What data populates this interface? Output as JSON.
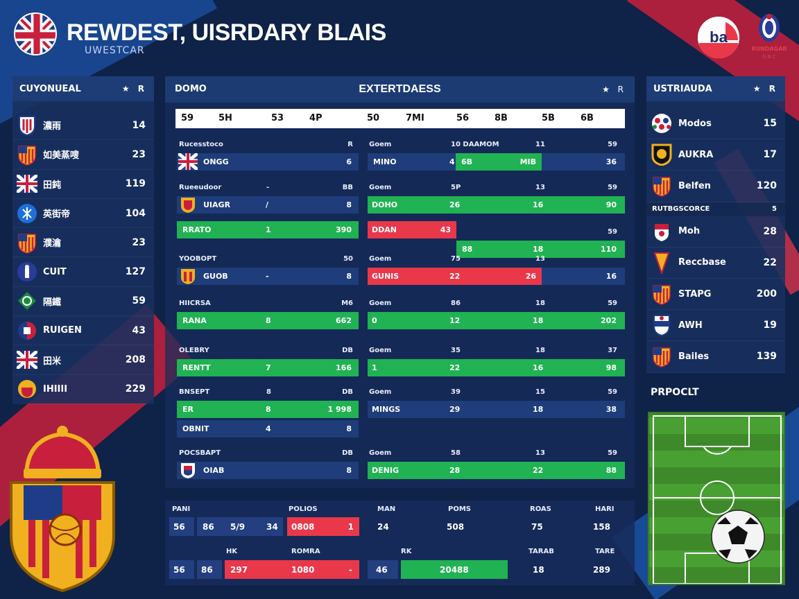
{
  "header": {
    "title": "REWDEST, UISRDARY BLAIS",
    "subtitle": "UWESTCAR"
  },
  "logos": {
    "right_a": "ba",
    "right_b_line1": "RUNDAGAR",
    "right_b_line2": "G B C"
  },
  "left_panel": {
    "title": "CUYONUEAL",
    "stars": "★ R",
    "items": [
      {
        "icon": "shield-blue-icon",
        "name": "濃雨",
        "value": "14"
      },
      {
        "icon": "crest-orange-icon",
        "name": "如美蒸嗖",
        "value": "23"
      },
      {
        "icon": "uk-flag-icon",
        "name": "田鈍",
        "value": "119"
      },
      {
        "icon": "blue-circle-icon",
        "name": "英街帝",
        "value": "104"
      },
      {
        "icon": "crest-spain-icon",
        "name": "濮瀹",
        "value": "23"
      },
      {
        "icon": "blue-figure-icon",
        "name": "CUIT",
        "value": "127"
      },
      {
        "icon": "green-diamond-icon",
        "name": "隔鐵",
        "value": "59"
      },
      {
        "icon": "red-blue-crest-icon",
        "name": "RUIGEN",
        "value": "43"
      },
      {
        "icon": "uk-flag-icon",
        "name": "田米",
        "value": "208"
      },
      {
        "icon": "yellow-crest-icon",
        "name": "IHIIII",
        "value": "229"
      }
    ]
  },
  "center": {
    "left_label": "DOMO",
    "title": "EXTERTDAESS",
    "stars": "★ R",
    "tabs": [
      "59",
      "5H",
      "53",
      "4P",
      "50",
      "7MI",
      "56",
      "8B",
      "5B",
      "6B"
    ],
    "rows": [
      {
        "label": "Rucesstoco",
        "label_b": "R",
        "team": "ONGG",
        "val": "6",
        "r_label": "Goem",
        "r_mid": "10 DAAMOM",
        "r_b": "11",
        "r_end": "59",
        "r_c1": "MINO",
        "r_c2": "4",
        "r_c3": "6B",
        "r_c4": "MIB",
        "r_c5": "36"
      },
      {
        "label": "Rueeudoor",
        "label_b": "BB",
        "label_m": "-",
        "team": "UIAGR",
        "team_m": "/",
        "val": "8",
        "r_label": "Goem",
        "r_mid": "5P",
        "r_b": "13",
        "r_end": "59",
        "r_c1": "DOHO",
        "r_c2": "26",
        "r_c3": "16",
        "r_c4": "90"
      },
      {
        "bar_a": "RRATO",
        "bar_m": "1",
        "bar_v": "390",
        "r_label": "DDAN",
        "r_v": "43",
        "r_end": "59",
        "r_g1": "88",
        "r_g2": "18",
        "r_g3": "110"
      },
      {
        "label": "YOOBOPT",
        "label_b": "50",
        "team": "GUOB",
        "team_m": "-",
        "val": "8",
        "r_label": "Goem",
        "r_mid": "75",
        "r_b": "13",
        "r_c1": "GUNIS",
        "r_c2": "22",
        "r_c3": "26",
        "r_c4": "16"
      },
      {
        "label": "HIICRSA",
        "label_b": "M6",
        "bar_a": "RANA",
        "bar_m": "8",
        "bar_v": "662",
        "r_label": "Goem",
        "r_mid": "86",
        "r_b": "18",
        "r_end": "59",
        "r_g0": "0",
        "r_g1": "12",
        "r_g2": "18",
        "r_g3": "202"
      },
      {
        "label": "OLEBRY",
        "label_b": "DB",
        "bar_a": "RENTT",
        "bar_m": "7",
        "bar_v": "166",
        "r_label": "Goem",
        "r_mid": "35",
        "r_b": "18",
        "r_end": "37",
        "r_g0": "1",
        "r_g1": "22",
        "r_g2": "16",
        "r_g3": "98"
      },
      {
        "label": "BNSEPT",
        "label_m": "8",
        "label_b": "DB",
        "bar_a": "ER",
        "bar_m": "8",
        "bar_v": "1 998",
        "r_label": "Goem",
        "r_mid": "39",
        "r_b": "15",
        "r_end": "59",
        "r_c1": "MINGS",
        "r_c2": "29",
        "r_c3": "18",
        "r_c4": "38"
      },
      {
        "team2": "OBNIT",
        "team2_m": "4",
        "team2_v": "8"
      },
      {
        "label": "POCSBAPT",
        "label_b": "DB",
        "team": "OIAB",
        "val": "8",
        "r_label": "Goem",
        "r_mid": "58",
        "r_b": "13",
        "r_end": "59",
        "r_c1": "DENIG",
        "r_c2": "28",
        "r_c3": "22",
        "r_c4": "88"
      }
    ]
  },
  "bottom_stats": {
    "labels1": [
      "PANI",
      "POLIOS",
      "MAN",
      "POMS",
      "ROAS",
      "HARI"
    ],
    "row1": [
      "56",
      "86",
      "5/9",
      "34",
      "0808",
      "1",
      "24",
      "508",
      "75",
      "158"
    ],
    "labels2": [
      "HK",
      "ROMRA",
      "RK",
      "TARAB",
      "TARE"
    ],
    "row2": [
      "56",
      "86",
      "297",
      "1080",
      "46",
      "20488",
      "18",
      "289"
    ]
  },
  "right_panel": {
    "title": "USTRIAUDA",
    "stars": "★ R",
    "items": [
      {
        "icon": "multi-crest-icon",
        "name": "Modos",
        "value": "15"
      },
      {
        "icon": "yellow-badge-icon",
        "name": "AUKRA",
        "value": "17"
      },
      {
        "icon": "crest-spain-icon",
        "name": "Belfen",
        "value": "120"
      }
    ],
    "sub_label": "RUTBGSCORCE",
    "sub_value": "5",
    "items2": [
      {
        "icon": "red-crest-icon",
        "name": "Moh",
        "value": "28"
      },
      {
        "icon": "yellow-shield-icon",
        "name": "Reccbase",
        "value": "22"
      },
      {
        "icon": "crest-spain-icon",
        "name": "STAPG",
        "value": "200"
      },
      {
        "icon": "blue-white-crest-icon",
        "name": "AWH",
        "value": "19"
      },
      {
        "icon": "crest-spain-icon",
        "name": "Bailes",
        "value": "139"
      }
    ],
    "product": "PRPOCLT"
  },
  "colors": {
    "green": "#20b253",
    "red": "#e8384a",
    "navy": "#0f2248",
    "panel": "#19305f"
  }
}
